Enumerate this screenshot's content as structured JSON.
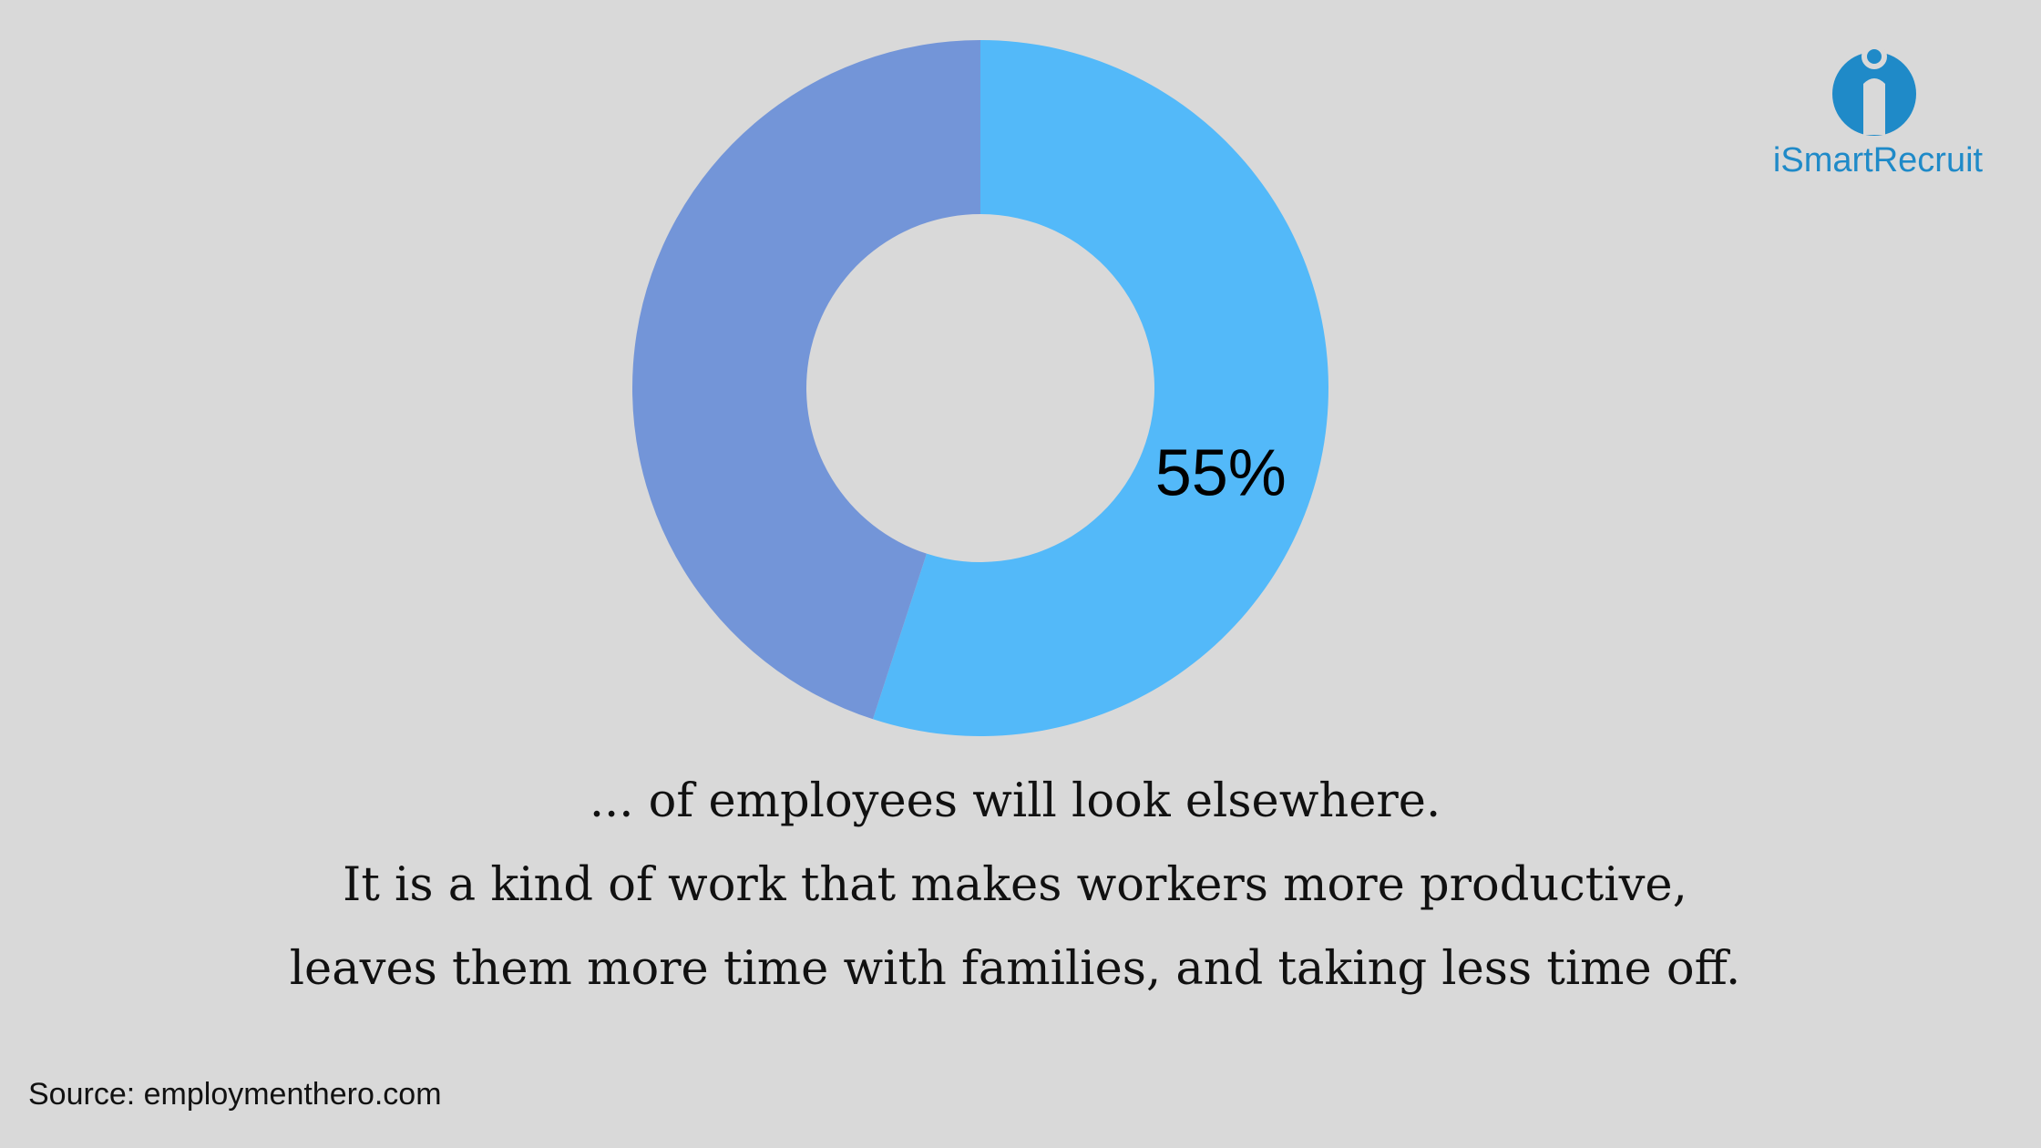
{
  "chart_data": {
    "type": "pie",
    "values": [
      55,
      45
    ],
    "value_labels": [
      "55%",
      null
    ],
    "colors": [
      "#53b9f9",
      "#7395d8"
    ],
    "annotations": [
      "... of employees will look elsewhere.",
      "It is a kind of work that makes workers more productive,",
      "leaves them more time with families, and taking less time off."
    ],
    "source": "Source: employmenthero.com"
  },
  "logo": "iSmartRecruit"
}
